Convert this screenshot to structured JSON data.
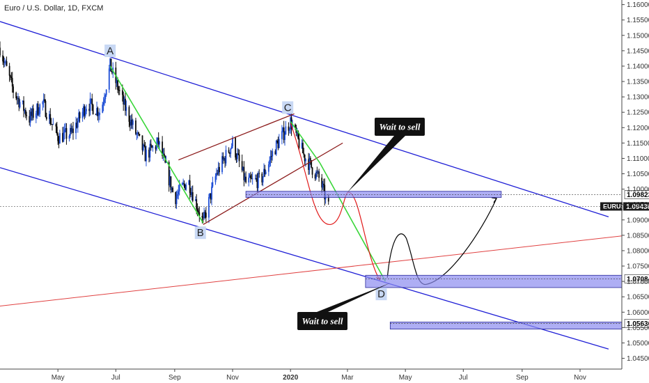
{
  "title": "Euro / U.S. Dollar, 1D, FXCM",
  "chart_data": {
    "type": "candlestick",
    "symbol": "EURUSD",
    "y_ticks": [
      "1.16000",
      "1.15500",
      "1.15000",
      "1.14500",
      "1.14000",
      "1.13500",
      "1.13000",
      "1.12500",
      "1.12000",
      "1.11500",
      "1.11000",
      "1.10500",
      "1.10000",
      "1.09500",
      "1.09000",
      "1.08500",
      "1.08000",
      "1.07500",
      "1.07000",
      "1.06500",
      "1.06000",
      "1.05500",
      "1.05000",
      "1.04500"
    ],
    "ylim": [
      1.0415,
      1.1615
    ],
    "x_ticks": [
      {
        "label": "May",
        "date": "2019-05-01",
        "bold": false
      },
      {
        "label": "Jul",
        "date": "2019-07-01",
        "bold": false
      },
      {
        "label": "Sep",
        "date": "2019-09-01",
        "bold": false
      },
      {
        "label": "Nov",
        "date": "2019-11-01",
        "bold": false
      },
      {
        "label": "2020",
        "date": "2020-01-01",
        "bold": true
      },
      {
        "label": "Mar",
        "date": "2020-03-01",
        "bold": false
      },
      {
        "label": "May",
        "date": "2020-05-01",
        "bold": false
      },
      {
        "label": "Jul",
        "date": "2020-07-01",
        "bold": false
      },
      {
        "label": "Sep",
        "date": "2020-09-01",
        "bold": false
      },
      {
        "label": "Nov",
        "date": "2020-11-01",
        "bold": false
      }
    ],
    "xlim": [
      "2019-03-01",
      "2020-12-15"
    ],
    "price_path": [
      [
        "2019-03-01",
        1.146
      ],
      [
        "2019-03-15",
        1.132
      ],
      [
        "2019-04-01",
        1.123
      ],
      [
        "2019-04-15",
        1.128
      ],
      [
        "2019-05-01",
        1.117
      ],
      [
        "2019-05-15",
        1.118
      ],
      [
        "2019-06-01",
        1.128
      ],
      [
        "2019-06-15",
        1.125
      ],
      [
        "2019-06-25",
        1.14
      ],
      [
        "2019-07-10",
        1.127
      ],
      [
        "2019-08-01",
        1.111
      ],
      [
        "2019-08-15",
        1.115
      ],
      [
        "2019-09-01",
        1.097
      ],
      [
        "2019-09-15",
        1.103
      ],
      [
        "2019-10-01",
        1.089
      ],
      [
        "2019-10-15",
        1.105
      ],
      [
        "2019-11-01",
        1.115
      ],
      [
        "2019-11-15",
        1.102
      ],
      [
        "2019-12-01",
        1.103
      ],
      [
        "2019-12-15",
        1.113
      ],
      [
        "2020-01-01",
        1.122
      ],
      [
        "2020-01-15",
        1.111
      ],
      [
        "2020-02-01",
        1.103
      ],
      [
        "2020-02-10",
        1.094
      ]
    ],
    "current_price": "1.09438",
    "horizontal_levels": [
      {
        "label": "1.09823",
        "value": 1.09823,
        "zone": [
          "2019-11-15",
          "2020-08-10"
        ],
        "zone_low": 1.0973,
        "zone_high": 1.0993
      },
      {
        "label": "1.07084",
        "value": 1.07084,
        "zone": [
          "2020-03-20",
          "2020-12-15"
        ],
        "zone_low": 1.068,
        "zone_high": 1.072
      },
      {
        "label": "1.05636",
        "value": 1.05636,
        "zone": [
          "2020-04-15",
          "2020-12-15"
        ],
        "zone_low": 1.0545,
        "zone_high": 1.0568
      }
    ],
    "points": [
      {
        "label": "A",
        "date": "2019-06-25",
        "price": 1.14
      },
      {
        "label": "B",
        "date": "2019-10-01",
        "price": 1.089
      },
      {
        "label": "C",
        "date": "2020-01-01",
        "price": 1.122
      },
      {
        "label": "D",
        "date": "2020-04-10",
        "price": 1.07
      }
    ],
    "notes": [
      {
        "text": "Wait to sell",
        "anchor_date": "2020-03-01",
        "anchor_price": 1.099
      },
      {
        "text": "Wait to sell",
        "anchor_date": "2020-04-15",
        "anchor_price": 1.0695
      }
    ],
    "colors": {
      "channel": "#1f1fd6",
      "wedge": "#8b1a1a",
      "abcd_leg": "#39d639",
      "projection_down": "#e11b1b",
      "projection_up": "#000000",
      "trendline": "#e04040",
      "candle_up": "#1f4fd6",
      "candle_down": "#0a0a0a",
      "zone_fill": "#8c8cf0"
    },
    "grid": false
  }
}
